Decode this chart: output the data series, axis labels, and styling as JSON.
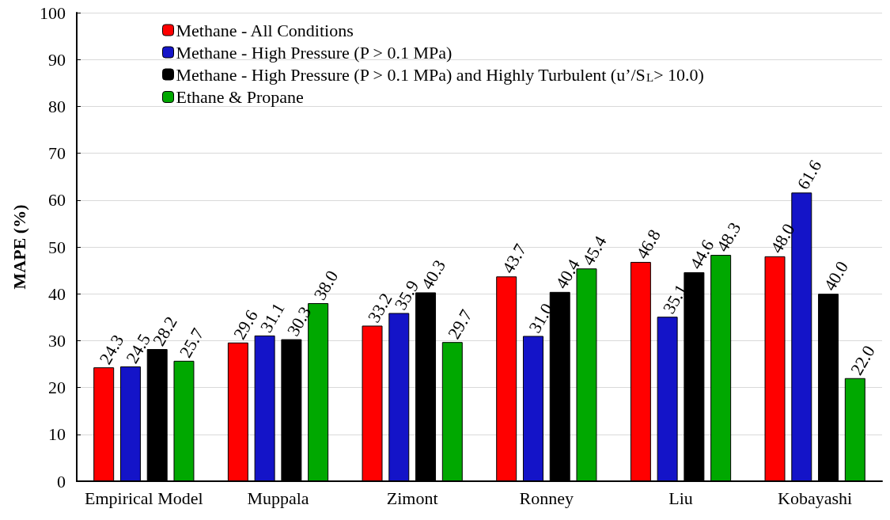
{
  "chart_data": {
    "type": "bar",
    "ylabel": "MAPE (%)",
    "categories": [
      "Empirical Model",
      "Muppala",
      "Zimont",
      "Ronney",
      "Liu",
      "Kobayashi"
    ],
    "series": [
      {
        "name": "Methane - All Conditions",
        "color": "#ff0000",
        "values": [
          24.3,
          29.6,
          33.2,
          43.7,
          46.8,
          48.0
        ],
        "value_labels": [
          "24.3",
          "29.6",
          "33.2",
          "43.7",
          "46.8",
          "48.0"
        ]
      },
      {
        "name": "Methane - High Pressure (P > 0.1 MPa)",
        "color": "#1414c8",
        "values": [
          24.5,
          31.1,
          35.9,
          31.0,
          35.1,
          61.6
        ],
        "value_labels": [
          "24.5",
          "31.1",
          "35.9",
          "31.0",
          "35.1",
          "61.6"
        ]
      },
      {
        "name": "Methane - High Pressure (P > 0.1 MPa) and Highly Turbulent (u’/S$_{L}$> 10.0)",
        "color": "#000000",
        "values": [
          28.2,
          30.3,
          40.3,
          40.4,
          44.6,
          40.0
        ],
        "value_labels": [
          "28.2",
          "30.3",
          "40.3",
          "40.4",
          "44.6",
          "40.0"
        ]
      },
      {
        "name": "Ethane & Propane",
        "color": "#00a800",
        "values": [
          25.7,
          38.0,
          29.7,
          45.4,
          48.3,
          22.0
        ],
        "value_labels": [
          "25.7",
          "38.0",
          "29.7",
          "45.4",
          "48.3",
          "22.0"
        ]
      }
    ],
    "ylim": [
      0,
      100
    ],
    "yticks": [
      0,
      10,
      20,
      30,
      40,
      50,
      60,
      70,
      80,
      90,
      100
    ],
    "grid": "y",
    "legend": "top left"
  }
}
